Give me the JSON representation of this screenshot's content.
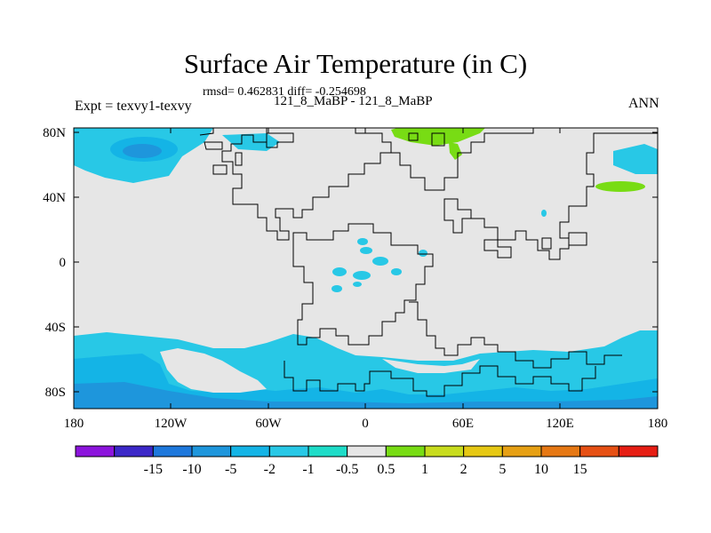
{
  "title": "Surface Air Temperature (in C)",
  "stats_line": "rmsd= 0.462831 diff= -0.254698",
  "experiment_label": "Expt = texvy1-texvy",
  "runs_label": "121_8_MaBP - 121_8_MaBP",
  "season_label": "ANN",
  "lat_ticks": [
    "80N",
    "40N",
    "0",
    "40S",
    "80S"
  ],
  "lon_ticks": [
    "180",
    "120W",
    "60W",
    "0",
    "60E",
    "120E",
    "180"
  ],
  "colorbar": {
    "colors": [
      "#8c14dc",
      "#3c28c8",
      "#1e78dc",
      "#1e96dc",
      "#14b4e6",
      "#28c8e6",
      "#1edcc8",
      "#e6e6e6",
      "#78dc14",
      "#c8dc1e",
      "#e6c814",
      "#e6a014",
      "#e67814",
      "#e65014",
      "#e61e14"
    ],
    "labels": [
      "-15",
      "-10",
      "-5",
      "-2",
      "-1",
      "-0.5",
      "0.5",
      "1",
      "2",
      "5",
      "10",
      "15"
    ]
  },
  "colors": {
    "neutral": "#e6e6e6",
    "cool_light": "#28c8e6",
    "cool_mid": "#14b4e6",
    "cool_dark": "#1e96dc",
    "warm": "#78dc14"
  }
}
